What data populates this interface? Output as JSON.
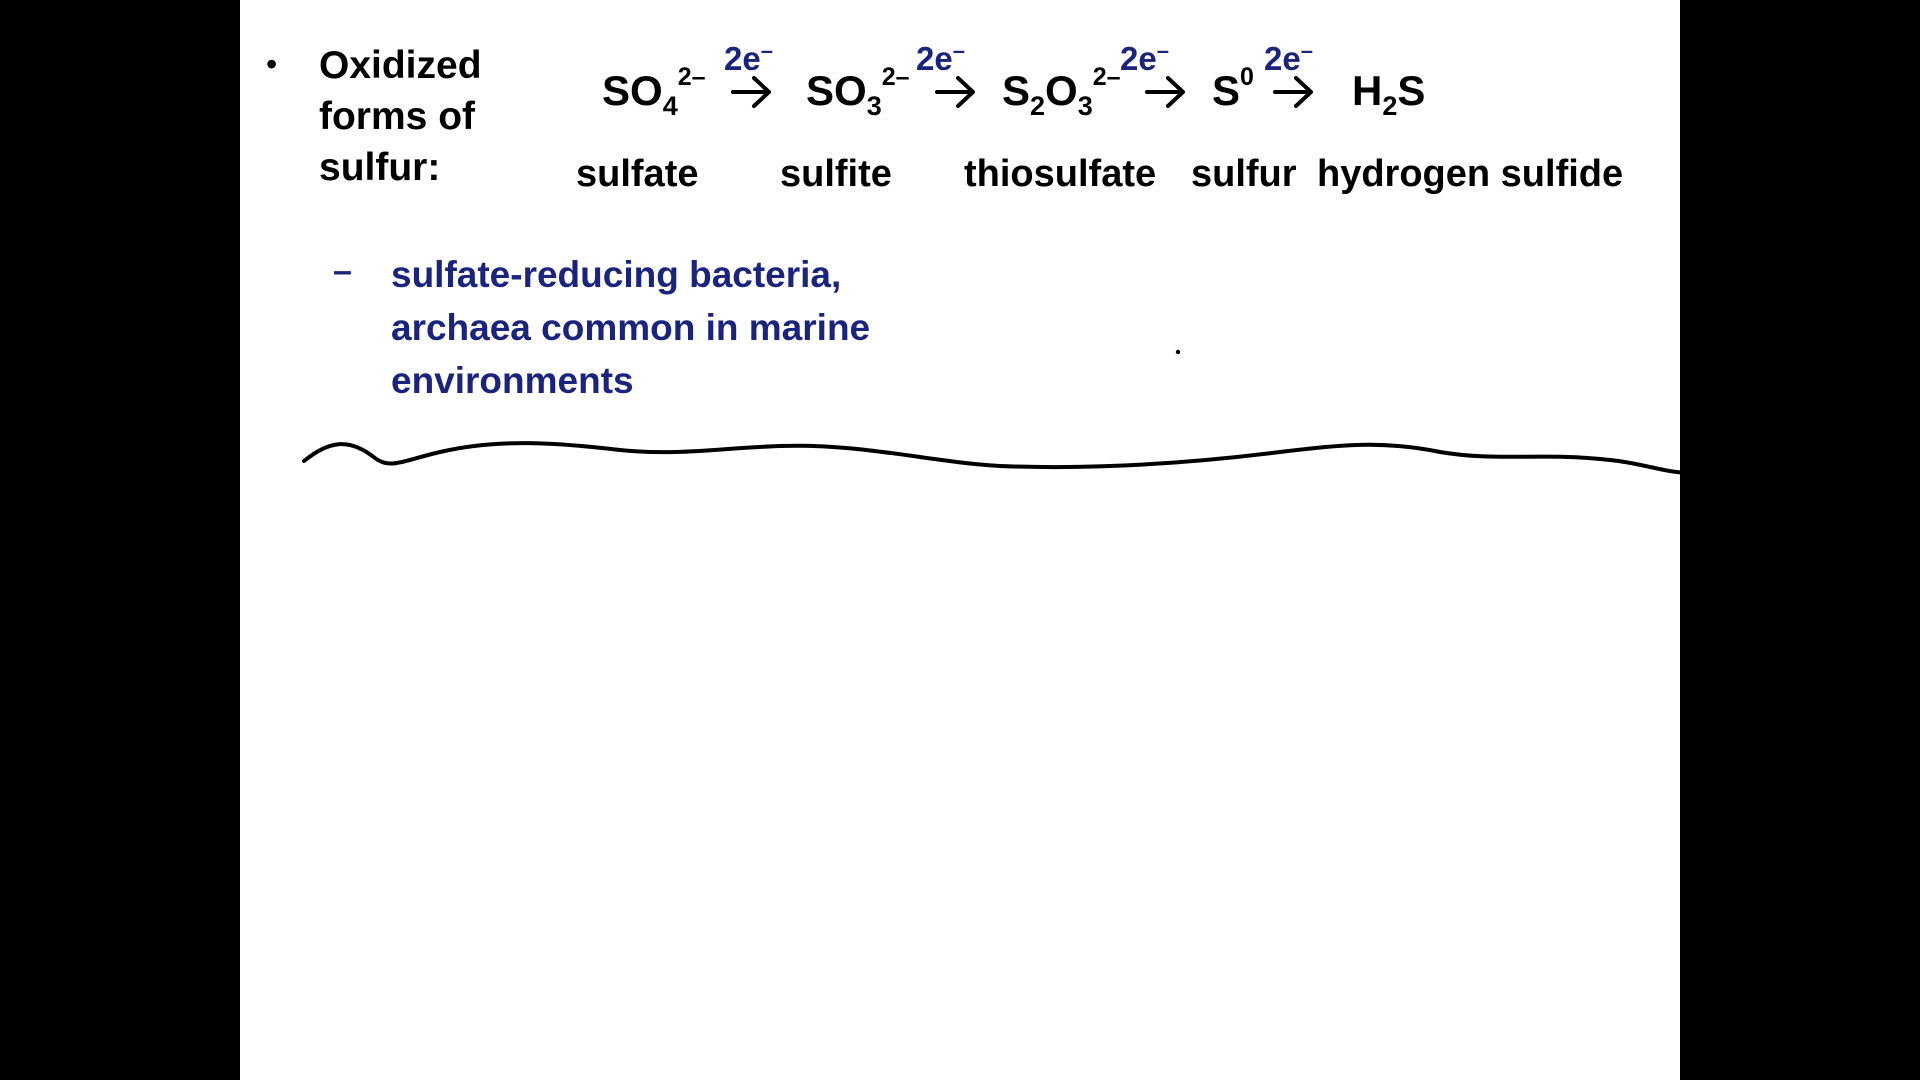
{
  "slide": {
    "bullet_symbol": "•",
    "heading_lines": [
      "Oxidized",
      "forms of",
      "sulfur:"
    ],
    "reaction": {
      "species": [
        {
          "base": "SO",
          "sub": "4",
          "sup": "2–"
        },
        {
          "base": "SO",
          "sub": "3",
          "sup": "2–"
        },
        {
          "base": "S",
          "sub": "2",
          "mid": "O",
          "sub2": "3",
          "sup": "2–"
        },
        {
          "base": "S",
          "sup": "0"
        },
        {
          "base": "H",
          "sub": "2",
          "tail": "S"
        }
      ],
      "electron_label": {
        "base": "2e",
        "sup": "–"
      },
      "arrow_symbol": "→"
    },
    "names": [
      "sulfate",
      "sulfite",
      "thiosulfate",
      "sulfur",
      "hydrogen sulfide"
    ],
    "sub_bullet": {
      "dash": "–",
      "lines": [
        "sulfate-reducing bacteria,",
        "archaea common in marine",
        "environments"
      ]
    },
    "colors": {
      "background": "#000000",
      "slide": "#ffffff",
      "text": "#000000",
      "accent_blue": "#1a237e",
      "ink": "#000000"
    }
  }
}
